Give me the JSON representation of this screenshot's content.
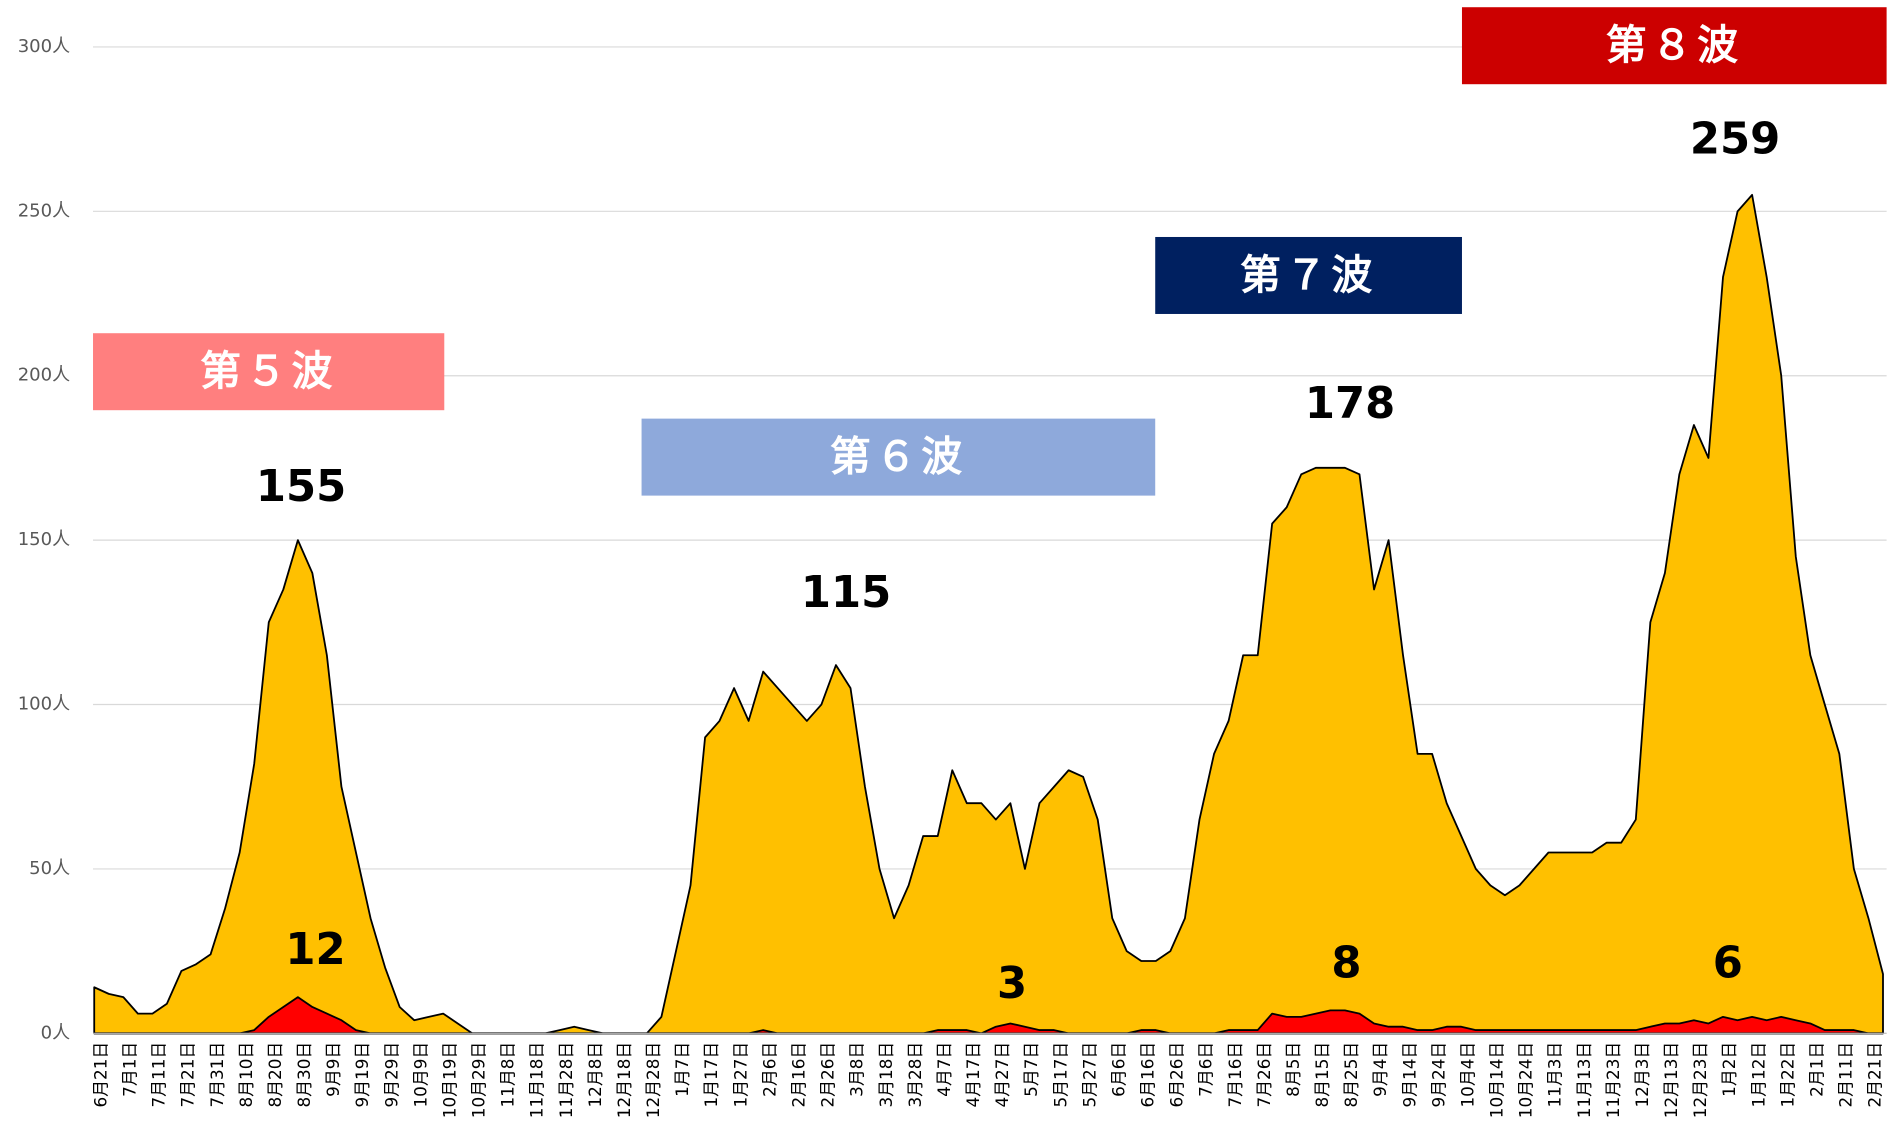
{
  "chart_data": {
    "type": "area",
    "categories": [
      "6月21日",
      null,
      "7月1日",
      null,
      "7月11日",
      null,
      "7月21日",
      null,
      "7月31日",
      null,
      "8月10日",
      null,
      "8月20日",
      null,
      "8月30日",
      null,
      "9月9日",
      null,
      "9月19日",
      null,
      "9月29日",
      null,
      "10月9日",
      null,
      "10月19日",
      null,
      "10月29日",
      null,
      "11月8日",
      null,
      "11月18日",
      null,
      "11月28日",
      null,
      "12月8日",
      null,
      "12月18日",
      null,
      "12月28日",
      null,
      "1月7日",
      null,
      "1月17日",
      null,
      "1月27日",
      null,
      "2月6日",
      null,
      "2月16日",
      null,
      "2月26日",
      null,
      "3月8日",
      null,
      "3月18日",
      null,
      "3月28日",
      null,
      "4月7日",
      null,
      "4月17日",
      null,
      "4月27日",
      null,
      "5月7日",
      null,
      "5月17日",
      null,
      "5月27日",
      null,
      "6月6日",
      null,
      "6月16日",
      null,
      "6月26日",
      null,
      "7月6日",
      null,
      "7月16日",
      null,
      "7月26日",
      null,
      "8月5日",
      null,
      "8月15日",
      null,
      "8月25日",
      null,
      "9月4日",
      null,
      "9月14日",
      null,
      "9月24日",
      null,
      "10月4日",
      null,
      "10月14日",
      null,
      "10月24日",
      null,
      "11月3日",
      null,
      "11月13日",
      null,
      "11月23日",
      null,
      "12月3日",
      null,
      "12月13日",
      null,
      "12月23日",
      null,
      "1月2日",
      null,
      "1月12日",
      null,
      "1月22日",
      null,
      "2月1日",
      null,
      "2月11日",
      null,
      "2月21日",
      null
    ],
    "series": [
      {
        "color": "#FFC000",
        "values": [
          14,
          12,
          11,
          6,
          6,
          9,
          19,
          21,
          24,
          38,
          55,
          82,
          125,
          135,
          150,
          140,
          115,
          75,
          55,
          35,
          20,
          8,
          4,
          5,
          6,
          3,
          0,
          0,
          0,
          0,
          0,
          0,
          1,
          2,
          1,
          0,
          0,
          0,
          0,
          5,
          25,
          45,
          90,
          95,
          105,
          95,
          110,
          105,
          100,
          95,
          100,
          112,
          105,
          75,
          50,
          35,
          45,
          60,
          60,
          80,
          70,
          70,
          65,
          70,
          50,
          70,
          75,
          80,
          78,
          65,
          35,
          25,
          22,
          22,
          25,
          35,
          65,
          85,
          95,
          115,
          115,
          155,
          160,
          170,
          172,
          172,
          172,
          170,
          135,
          150,
          115,
          85,
          85,
          70,
          60,
          50,
          45,
          42,
          45,
          50,
          55,
          55,
          55,
          55,
          58,
          58,
          65,
          125,
          140,
          170,
          185,
          175,
          230,
          250,
          255,
          230,
          200,
          145,
          115,
          100,
          85,
          50,
          35,
          18
        ]
      },
      {
        "color": "#FF0000",
        "values": [
          0,
          0,
          0,
          0,
          0,
          0,
          0,
          0,
          0,
          0,
          0,
          1,
          5,
          8,
          11,
          8,
          6,
          4,
          1,
          0,
          0,
          0,
          0,
          0,
          0,
          0,
          0,
          0,
          0,
          0,
          0,
          0,
          0,
          0,
          0,
          0,
          0,
          0,
          0,
          0,
          0,
          0,
          0,
          0,
          0,
          0,
          1,
          0,
          0,
          0,
          0,
          0,
          0,
          0,
          0,
          0,
          0,
          0,
          1,
          1,
          1,
          0,
          2,
          3,
          2,
          1,
          1,
          0,
          0,
          0,
          0,
          0,
          1,
          1,
          0,
          0,
          0,
          0,
          1,
          1,
          1,
          6,
          5,
          5,
          6,
          7,
          7,
          6,
          3,
          2,
          2,
          1,
          1,
          2,
          2,
          1,
          1,
          1,
          1,
          1,
          1,
          1,
          1,
          1,
          1,
          1,
          1,
          2,
          3,
          3,
          4,
          3,
          5,
          4,
          5,
          4,
          5,
          4,
          3,
          1,
          1,
          1,
          0,
          0
        ]
      }
    ],
    "ylim": [
      0,
      300
    ],
    "yticks": [
      {
        "value": 0,
        "label": "0人"
      },
      {
        "value": 50,
        "label": "50人"
      },
      {
        "value": 100,
        "label": "100人"
      },
      {
        "value": 150,
        "label": "150人"
      },
      {
        "value": 200,
        "label": "200人"
      },
      {
        "value": 250,
        "label": "250人"
      },
      {
        "value": 300,
        "label": "300人"
      }
    ],
    "grid": true,
    "annotations": [
      "155",
      "12",
      "115",
      "3",
      "178",
      "8",
      "259",
      "6"
    ],
    "waves": [
      {
        "text": "第５波",
        "color": "#FF7F7F"
      },
      {
        "text": "第６波",
        "color": "#8EA9DB"
      },
      {
        "text": "第７波",
        "color": "#002060"
      },
      {
        "text": "第８波",
        "color": "#CC0000"
      }
    ]
  }
}
